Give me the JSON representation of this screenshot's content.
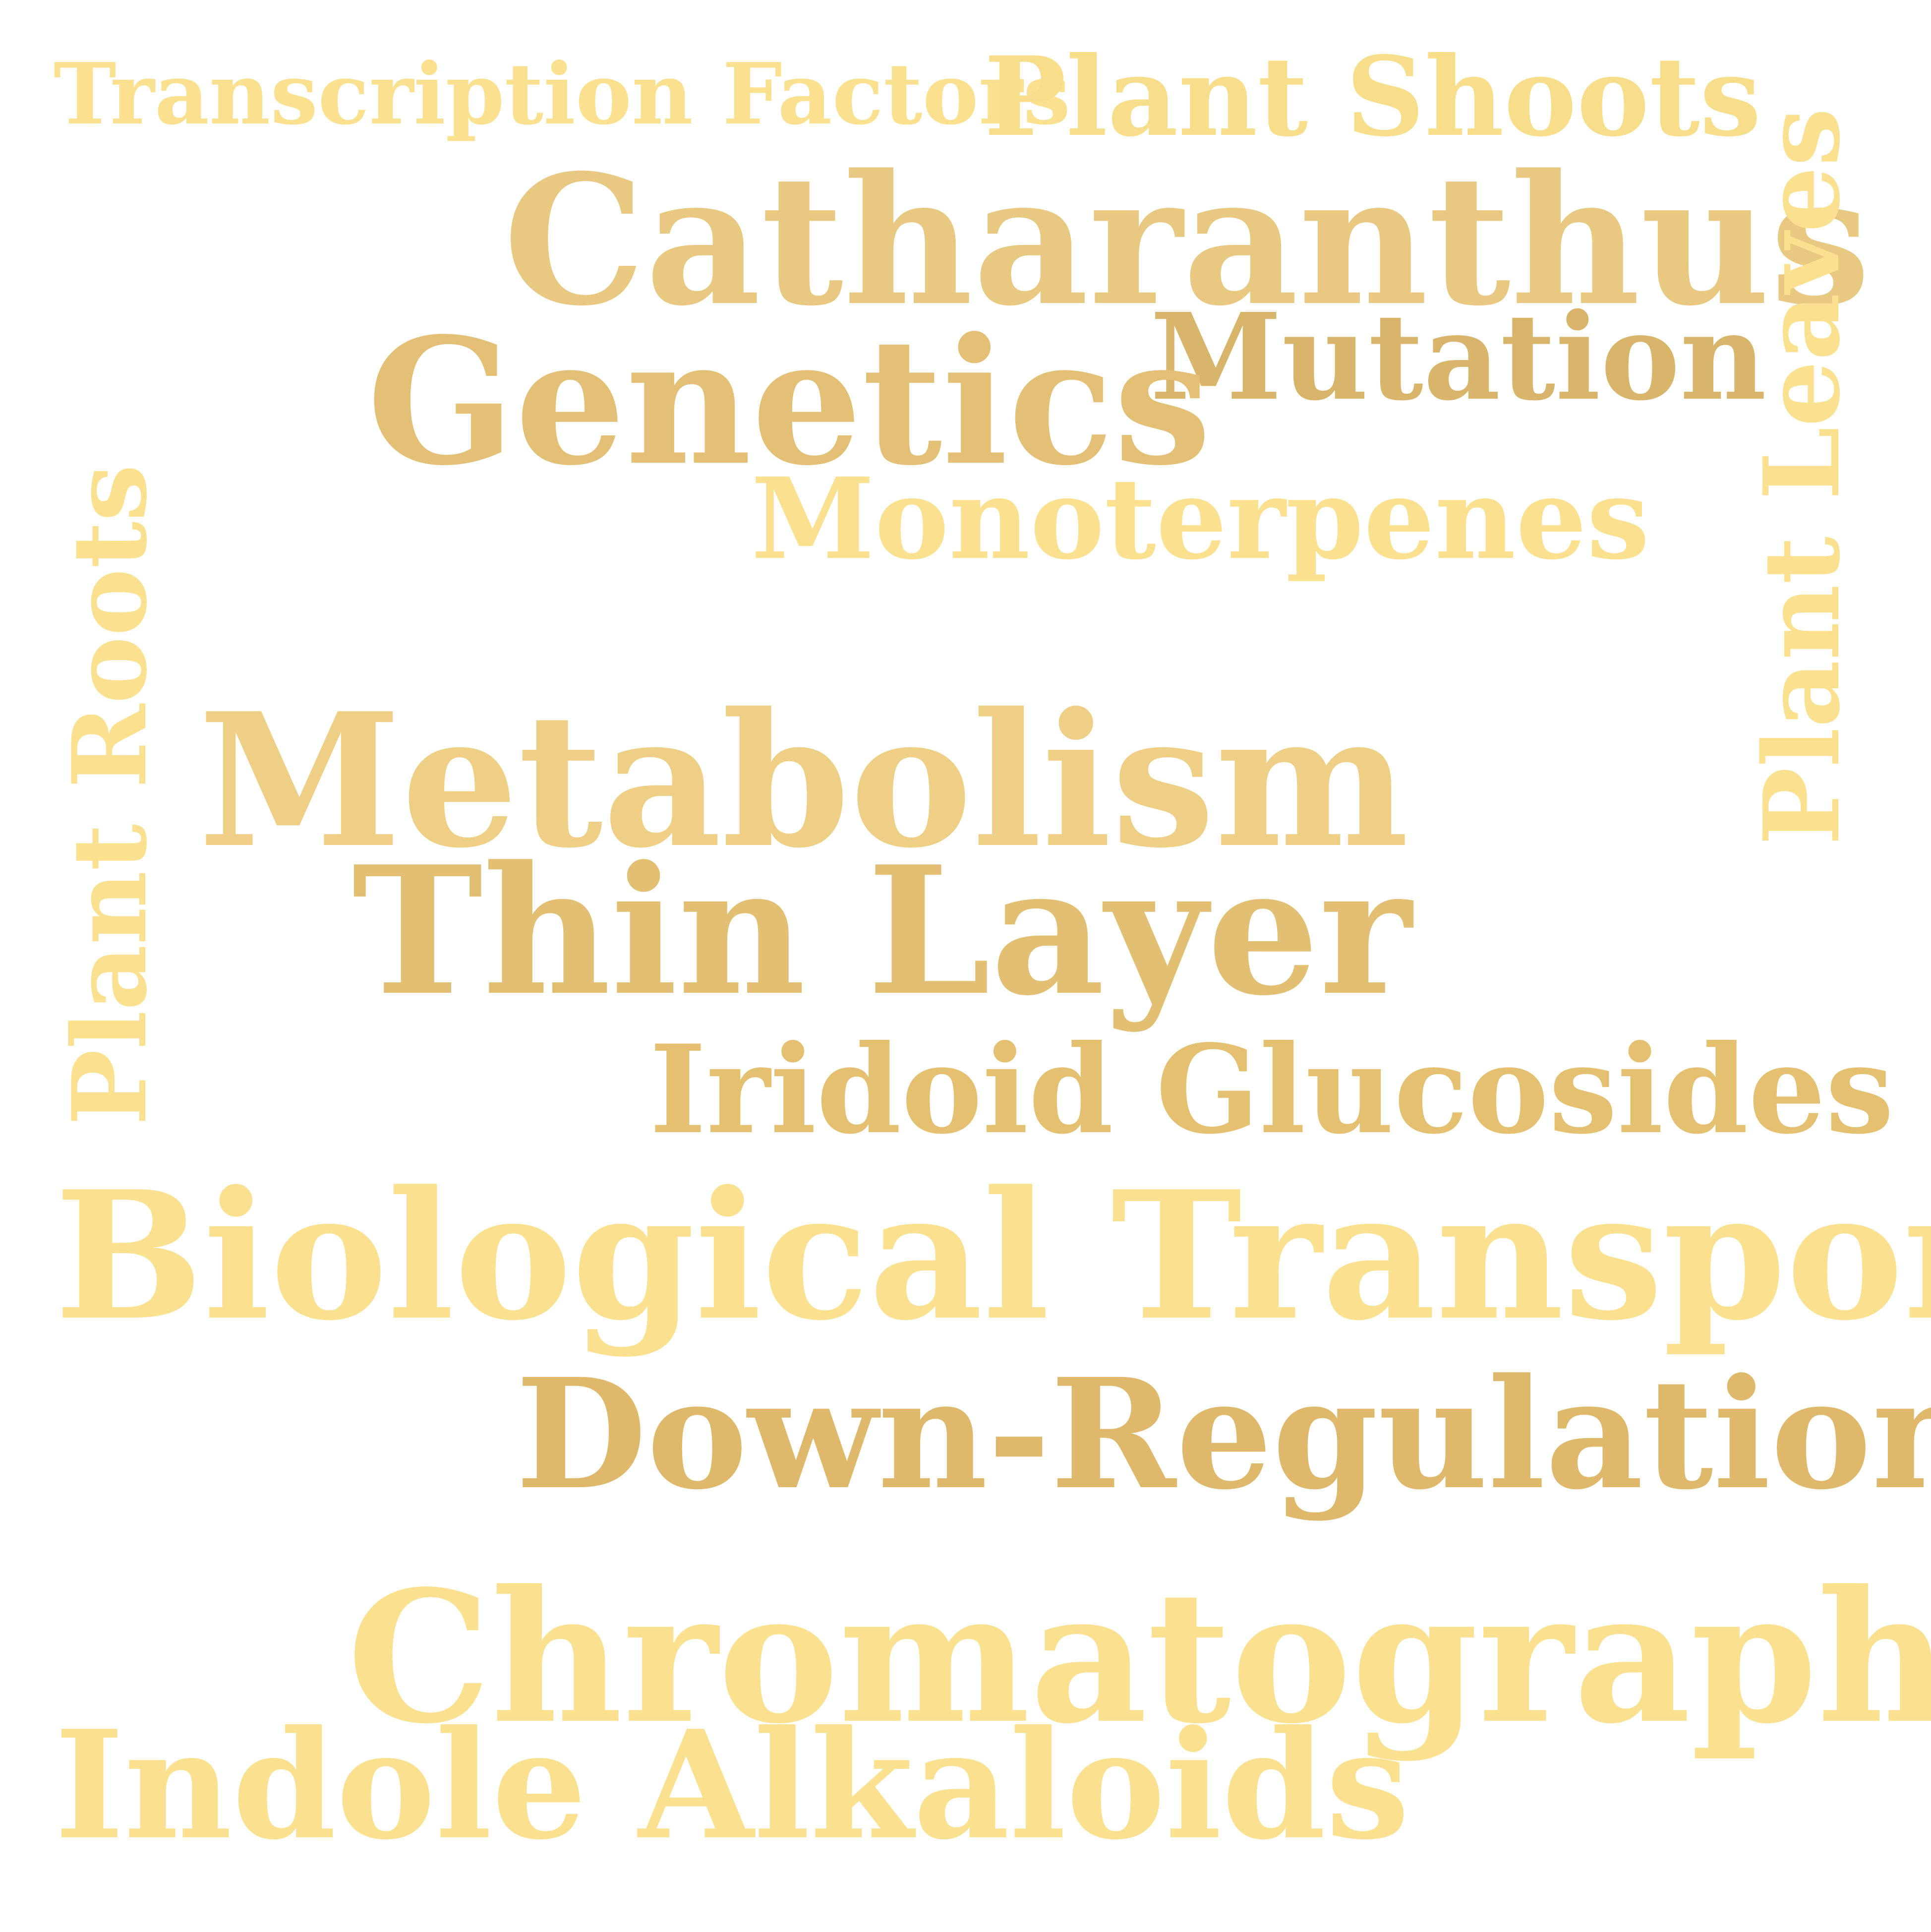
{
  "words": {
    "transcription_factors": "Transcription Factors",
    "plant_shoots": "Plant Shoots",
    "catharanthus": "Catharanthus",
    "mutation": "Mutation",
    "genetics": "Genetics",
    "monoterpenes": "Monoterpenes",
    "metabolism": "Metabolism",
    "thin_layer": "Thin Layer",
    "iridoid_glucosides": "Iridoid Glucosides",
    "biological_transport": "Biological Transport",
    "down_regulation": "Down-Regulation",
    "chromatography": "Chromatography",
    "indole_alkaloids": "Indole Alkaloids",
    "plant_roots": "Plant Roots",
    "plant_leaves": "Plant Leaves"
  },
  "colors": {
    "background": "#ffffff",
    "light_gold": "#fbe08f",
    "pale_gold": "#f8dd8a",
    "medium_gold": "#efcf85",
    "warm_gold": "#ebc47a",
    "tan_gold": "#e4c076",
    "deep_gold": "#dcb46a"
  },
  "word_colors": {
    "transcription_factors": "#fbe08f",
    "plant_shoots": "#f8dd8a",
    "catharanthus": "#e9c981",
    "mutation": "#d9b56b",
    "genetics": "#e4c076",
    "monoterpenes": "#fbe08f",
    "metabolism": "#efcf85",
    "thin_layer": "#e2bf72",
    "iridoid_glucosides": "#e6c071",
    "biological_transport": "#fbe08f",
    "down_regulation": "#e0b86b",
    "chromatography": "#fbe08f",
    "indole_alkaloids": "#fbe08f",
    "plant_roots": "#fbe08f",
    "plant_leaves": "#fbe08f"
  }
}
